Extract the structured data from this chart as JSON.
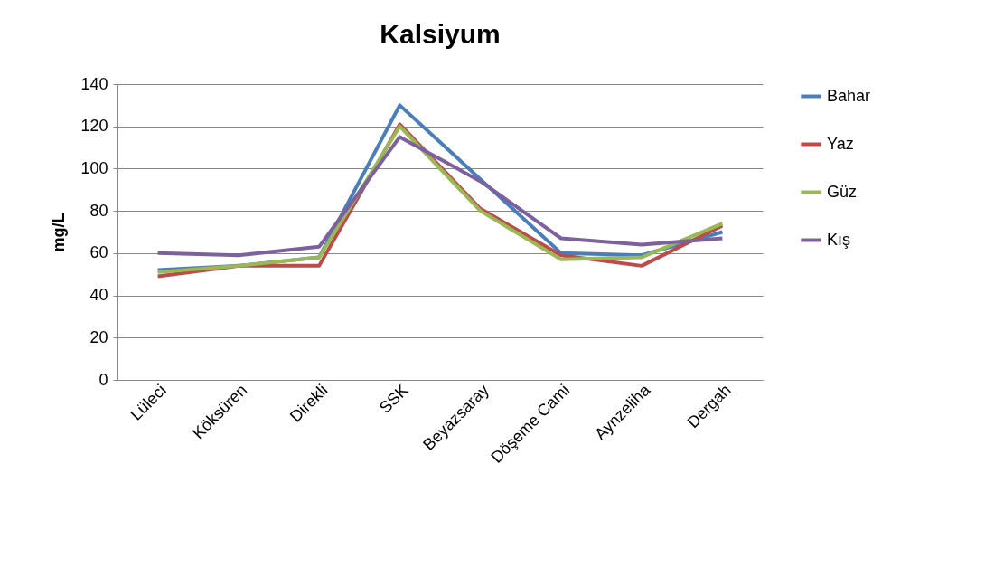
{
  "chart_data": {
    "type": "line",
    "title": "Kalsiyum",
    "ylabel": "mg/L",
    "categories": [
      "Lüleci",
      "Köksüren",
      "Direkli",
      "SSK",
      "Beyazsaray",
      "Döşeme Cami",
      "Aynzeliha",
      "Dergah"
    ],
    "series": [
      {
        "name": "Bahar",
        "color": "#4a7ebb",
        "values": [
          52,
          54,
          58,
          130,
          95,
          60,
          59,
          70
        ]
      },
      {
        "name": "Yaz",
        "color": "#be4b48",
        "values": [
          49,
          54,
          54,
          121,
          81,
          59,
          54,
          73
        ]
      },
      {
        "name": "Güz",
        "color": "#98b954",
        "values": [
          51,
          54,
          58,
          120,
          80,
          57,
          58,
          74
        ]
      },
      {
        "name": "Kış",
        "color": "#7d60a0",
        "values": [
          60,
          59,
          63,
          115,
          94,
          67,
          64,
          67
        ]
      }
    ],
    "ylim": [
      0,
      140
    ],
    "yticks": [
      0,
      20,
      40,
      60,
      80,
      100,
      120,
      140
    ],
    "grid": "y",
    "legend": "right",
    "marker": "none",
    "line_style": "solid"
  }
}
